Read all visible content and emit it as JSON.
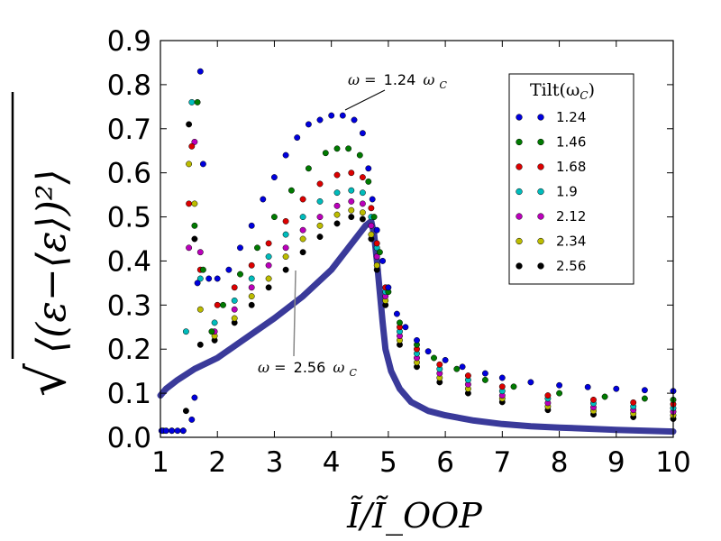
{
  "chart_data": {
    "type": "scatter",
    "xlabel": "Ĩ/Ĩ_OOP",
    "ylabel_parts": {
      "radical": "√",
      "body": "⟨(ε−⟨ε⟩)²⟩"
    },
    "xlim": [
      1,
      10
    ],
    "ylim": [
      0,
      0.9
    ],
    "x_ticks": [
      "1",
      "2",
      "3",
      "4",
      "5",
      "6",
      "7",
      "8",
      "9",
      "10"
    ],
    "y_ticks": [
      "0.0",
      "0.1",
      "0.2",
      "0.3",
      "0.4",
      "0.5",
      "0.6",
      "0.7",
      "0.8",
      "0.9"
    ],
    "legend": {
      "title": "Tilt(ω",
      "title_sub": "C",
      "title_close": ")",
      "location": "upper-right",
      "entries": [
        {
          "label": "1.24",
          "color": "#0000dd"
        },
        {
          "label": "1.46",
          "color": "#007a00"
        },
        {
          "label": "1.68",
          "color": "#dd0000"
        },
        {
          "label": "1.9",
          "color": "#00bcbc"
        },
        {
          "label": "2.12",
          "color": "#bb00bb"
        },
        {
          "label": "2.34",
          "color": "#bcbc00"
        },
        {
          "label": "2.56",
          "color": "#000000"
        }
      ]
    },
    "annotations": [
      {
        "prefix": "ω =",
        "value": "1.24",
        "suffix": "ω",
        "sub": "C"
      },
      {
        "prefix": "ω =",
        "value": "2.56",
        "suffix": "ω",
        "sub": "C"
      }
    ],
    "series": [
      {
        "name": "1.24",
        "color": "#0000dd",
        "points": [
          [
            1.02,
            0.015
          ],
          [
            1.1,
            0.015
          ],
          [
            1.2,
            0.015
          ],
          [
            1.3,
            0.015
          ],
          [
            1.4,
            0.015
          ],
          [
            1.55,
            0.04
          ],
          [
            1.6,
            0.09
          ],
          [
            1.65,
            0.35
          ],
          [
            1.7,
            0.83
          ],
          [
            1.75,
            0.62
          ],
          [
            1.85,
            0.36
          ],
          [
            2.0,
            0.36
          ],
          [
            2.2,
            0.38
          ],
          [
            2.4,
            0.43
          ],
          [
            2.6,
            0.48
          ],
          [
            2.8,
            0.54
          ],
          [
            3.0,
            0.59
          ],
          [
            3.2,
            0.64
          ],
          [
            3.4,
            0.68
          ],
          [
            3.6,
            0.71
          ],
          [
            3.8,
            0.72
          ],
          [
            4.0,
            0.73
          ],
          [
            4.2,
            0.73
          ],
          [
            4.4,
            0.72
          ],
          [
            4.55,
            0.69
          ],
          [
            4.65,
            0.61
          ],
          [
            4.72,
            0.54
          ],
          [
            4.8,
            0.47
          ],
          [
            4.9,
            0.4
          ],
          [
            5.0,
            0.34
          ],
          [
            5.15,
            0.28
          ],
          [
            5.3,
            0.25
          ],
          [
            5.5,
            0.22
          ],
          [
            5.7,
            0.195
          ],
          [
            6.0,
            0.175
          ],
          [
            6.3,
            0.16
          ],
          [
            6.7,
            0.145
          ],
          [
            7.0,
            0.135
          ],
          [
            7.5,
            0.125
          ],
          [
            8.0,
            0.118
          ],
          [
            8.5,
            0.114
          ],
          [
            9.0,
            0.11
          ],
          [
            9.5,
            0.107
          ],
          [
            10.0,
            0.105
          ]
        ]
      },
      {
        "name": "1.46",
        "color": "#007a00",
        "points": [
          [
            1.05,
            0.015
          ],
          [
            1.2,
            0.015
          ],
          [
            1.4,
            0.015
          ],
          [
            1.6,
            0.48
          ],
          [
            1.65,
            0.76
          ],
          [
            1.75,
            0.38
          ],
          [
            1.9,
            0.24
          ],
          [
            2.1,
            0.3
          ],
          [
            2.4,
            0.37
          ],
          [
            2.7,
            0.43
          ],
          [
            3.0,
            0.5
          ],
          [
            3.3,
            0.56
          ],
          [
            3.6,
            0.61
          ],
          [
            3.9,
            0.645
          ],
          [
            4.1,
            0.655
          ],
          [
            4.3,
            0.655
          ],
          [
            4.5,
            0.64
          ],
          [
            4.65,
            0.58
          ],
          [
            4.75,
            0.5
          ],
          [
            4.85,
            0.42
          ],
          [
            5.0,
            0.33
          ],
          [
            5.2,
            0.26
          ],
          [
            5.5,
            0.21
          ],
          [
            5.8,
            0.18
          ],
          [
            6.2,
            0.155
          ],
          [
            6.7,
            0.13
          ],
          [
            7.2,
            0.115
          ],
          [
            8.0,
            0.1
          ],
          [
            8.8,
            0.092
          ],
          [
            9.5,
            0.088
          ],
          [
            10.0,
            0.085
          ]
        ]
      },
      {
        "name": "1.68",
        "color": "#dd0000",
        "points": [
          [
            1.5,
            0.53
          ],
          [
            1.55,
            0.66
          ],
          [
            1.7,
            0.38
          ],
          [
            2.0,
            0.3
          ],
          [
            2.3,
            0.34
          ],
          [
            2.6,
            0.39
          ],
          [
            2.9,
            0.44
          ],
          [
            3.2,
            0.49
          ],
          [
            3.5,
            0.54
          ],
          [
            3.8,
            0.575
          ],
          [
            4.1,
            0.595
          ],
          [
            4.35,
            0.6
          ],
          [
            4.55,
            0.59
          ],
          [
            4.7,
            0.52
          ],
          [
            4.8,
            0.44
          ],
          [
            4.95,
            0.34
          ],
          [
            5.2,
            0.25
          ],
          [
            5.5,
            0.2
          ],
          [
            5.9,
            0.165
          ],
          [
            6.4,
            0.14
          ],
          [
            7.0,
            0.115
          ],
          [
            7.8,
            0.095
          ],
          [
            8.6,
            0.085
          ],
          [
            9.3,
            0.079
          ],
          [
            10.0,
            0.075
          ]
        ]
      },
      {
        "name": "1.9",
        "color": "#00bcbc",
        "points": [
          [
            1.45,
            0.24
          ],
          [
            1.55,
            0.76
          ],
          [
            1.7,
            0.36
          ],
          [
            1.95,
            0.26
          ],
          [
            2.3,
            0.31
          ],
          [
            2.6,
            0.36
          ],
          [
            2.9,
            0.41
          ],
          [
            3.2,
            0.46
          ],
          [
            3.5,
            0.5
          ],
          [
            3.8,
            0.535
          ],
          [
            4.1,
            0.555
          ],
          [
            4.35,
            0.56
          ],
          [
            4.55,
            0.555
          ],
          [
            4.7,
            0.5
          ],
          [
            4.8,
            0.43
          ],
          [
            4.95,
            0.33
          ],
          [
            5.2,
            0.24
          ],
          [
            5.5,
            0.19
          ],
          [
            5.9,
            0.155
          ],
          [
            6.4,
            0.13
          ],
          [
            7.0,
            0.105
          ],
          [
            7.8,
            0.088
          ],
          [
            8.6,
            0.077
          ],
          [
            9.3,
            0.07
          ],
          [
            10.0,
            0.066
          ]
        ]
      },
      {
        "name": "2.12",
        "color": "#bb00bb",
        "points": [
          [
            1.5,
            0.43
          ],
          [
            1.6,
            0.67
          ],
          [
            1.7,
            0.42
          ],
          [
            1.95,
            0.24
          ],
          [
            2.3,
            0.29
          ],
          [
            2.6,
            0.34
          ],
          [
            2.9,
            0.39
          ],
          [
            3.2,
            0.43
          ],
          [
            3.5,
            0.47
          ],
          [
            3.8,
            0.5
          ],
          [
            4.1,
            0.525
          ],
          [
            4.35,
            0.535
          ],
          [
            4.55,
            0.53
          ],
          [
            4.7,
            0.48
          ],
          [
            4.8,
            0.41
          ],
          [
            4.95,
            0.32
          ],
          [
            5.2,
            0.23
          ],
          [
            5.5,
            0.18
          ],
          [
            5.9,
            0.145
          ],
          [
            6.4,
            0.12
          ],
          [
            7.0,
            0.095
          ],
          [
            7.8,
            0.078
          ],
          [
            8.6,
            0.068
          ],
          [
            9.3,
            0.062
          ],
          [
            10.0,
            0.058
          ]
        ]
      },
      {
        "name": "2.34",
        "color": "#bcbc00",
        "points": [
          [
            1.5,
            0.62
          ],
          [
            1.6,
            0.53
          ],
          [
            1.7,
            0.29
          ],
          [
            1.95,
            0.23
          ],
          [
            2.3,
            0.27
          ],
          [
            2.6,
            0.32
          ],
          [
            2.9,
            0.36
          ],
          [
            3.2,
            0.41
          ],
          [
            3.5,
            0.45
          ],
          [
            3.8,
            0.48
          ],
          [
            4.1,
            0.505
          ],
          [
            4.35,
            0.515
          ],
          [
            4.55,
            0.51
          ],
          [
            4.7,
            0.46
          ],
          [
            4.8,
            0.39
          ],
          [
            4.95,
            0.31
          ],
          [
            5.2,
            0.22
          ],
          [
            5.5,
            0.17
          ],
          [
            5.9,
            0.135
          ],
          [
            6.4,
            0.11
          ],
          [
            7.0,
            0.088
          ],
          [
            7.8,
            0.07
          ],
          [
            8.6,
            0.06
          ],
          [
            9.3,
            0.054
          ],
          [
            10.0,
            0.05
          ]
        ]
      },
      {
        "name": "2.56",
        "color": "#000000",
        "points": [
          [
            1.45,
            0.06
          ],
          [
            1.5,
            0.71
          ],
          [
            1.6,
            0.45
          ],
          [
            1.7,
            0.21
          ],
          [
            1.95,
            0.22
          ],
          [
            2.3,
            0.26
          ],
          [
            2.6,
            0.3
          ],
          [
            2.9,
            0.34
          ],
          [
            3.2,
            0.38
          ],
          [
            3.5,
            0.42
          ],
          [
            3.8,
            0.455
          ],
          [
            4.1,
            0.485
          ],
          [
            4.35,
            0.5
          ],
          [
            4.55,
            0.495
          ],
          [
            4.7,
            0.45
          ],
          [
            4.8,
            0.38
          ],
          [
            4.95,
            0.3
          ],
          [
            5.2,
            0.21
          ],
          [
            5.5,
            0.16
          ],
          [
            5.9,
            0.125
          ],
          [
            6.4,
            0.1
          ],
          [
            7.0,
            0.08
          ],
          [
            7.8,
            0.062
          ],
          [
            8.6,
            0.052
          ],
          [
            9.3,
            0.046
          ],
          [
            10.0,
            0.042
          ]
        ]
      }
    ],
    "reference_curve": {
      "color": "#3a3a9a",
      "points": [
        [
          1.0,
          0.095
        ],
        [
          1.1,
          0.11
        ],
        [
          1.3,
          0.13
        ],
        [
          1.6,
          0.155
        ],
        [
          2.0,
          0.18
        ],
        [
          2.5,
          0.225
        ],
        [
          3.0,
          0.27
        ],
        [
          3.5,
          0.32
        ],
        [
          4.0,
          0.38
        ],
        [
          4.3,
          0.43
        ],
        [
          4.6,
          0.48
        ],
        [
          4.7,
          0.49
        ],
        [
          4.75,
          0.46
        ],
        [
          4.8,
          0.4
        ],
        [
          4.85,
          0.33
        ],
        [
          4.9,
          0.26
        ],
        [
          4.95,
          0.2
        ],
        [
          5.05,
          0.15
        ],
        [
          5.2,
          0.11
        ],
        [
          5.4,
          0.08
        ],
        [
          5.7,
          0.06
        ],
        [
          6.0,
          0.05
        ],
        [
          6.5,
          0.038
        ],
        [
          7.0,
          0.03
        ],
        [
          7.5,
          0.025
        ],
        [
          8.0,
          0.022
        ],
        [
          9.0,
          0.017
        ],
        [
          10.0,
          0.013
        ]
      ]
    }
  }
}
